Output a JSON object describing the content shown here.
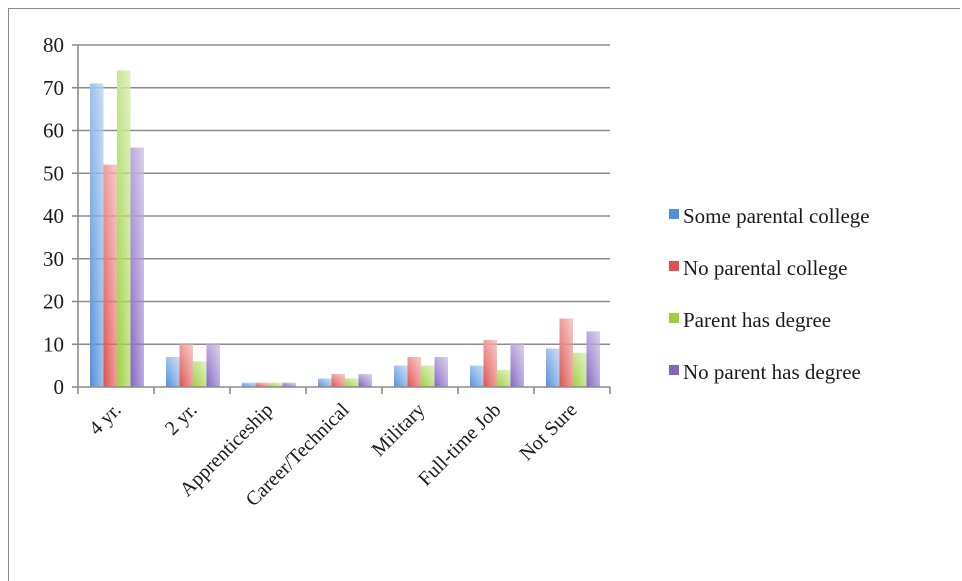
{
  "chart_data": {
    "type": "bar",
    "title": "",
    "xlabel": "",
    "ylabel": "",
    "ylim": [
      0,
      80
    ],
    "yticks": [
      0,
      10,
      20,
      30,
      40,
      50,
      60,
      70,
      80
    ],
    "grid": true,
    "legend_position": "right",
    "categories": [
      "4 yr.",
      "2 yr.",
      "Apprenticeship",
      "Career/Technical",
      "Military",
      "Full-time Job",
      "Not Sure"
    ],
    "series": [
      {
        "name": "Some parental college",
        "color": "#4f8fdc",
        "values": [
          71,
          7,
          1,
          2,
          5,
          5,
          9
        ]
      },
      {
        "name": "No parental college",
        "color": "#e0504d",
        "values": [
          52,
          10,
          1,
          3,
          7,
          11,
          16
        ]
      },
      {
        "name": "Parent has degree",
        "color": "#9bd03e",
        "values": [
          74,
          6,
          1,
          2,
          5,
          4,
          8
        ]
      },
      {
        "name": "No parent has degree",
        "color": "#8466c0",
        "values": [
          56,
          10,
          1,
          3,
          7,
          10,
          13
        ]
      }
    ]
  }
}
